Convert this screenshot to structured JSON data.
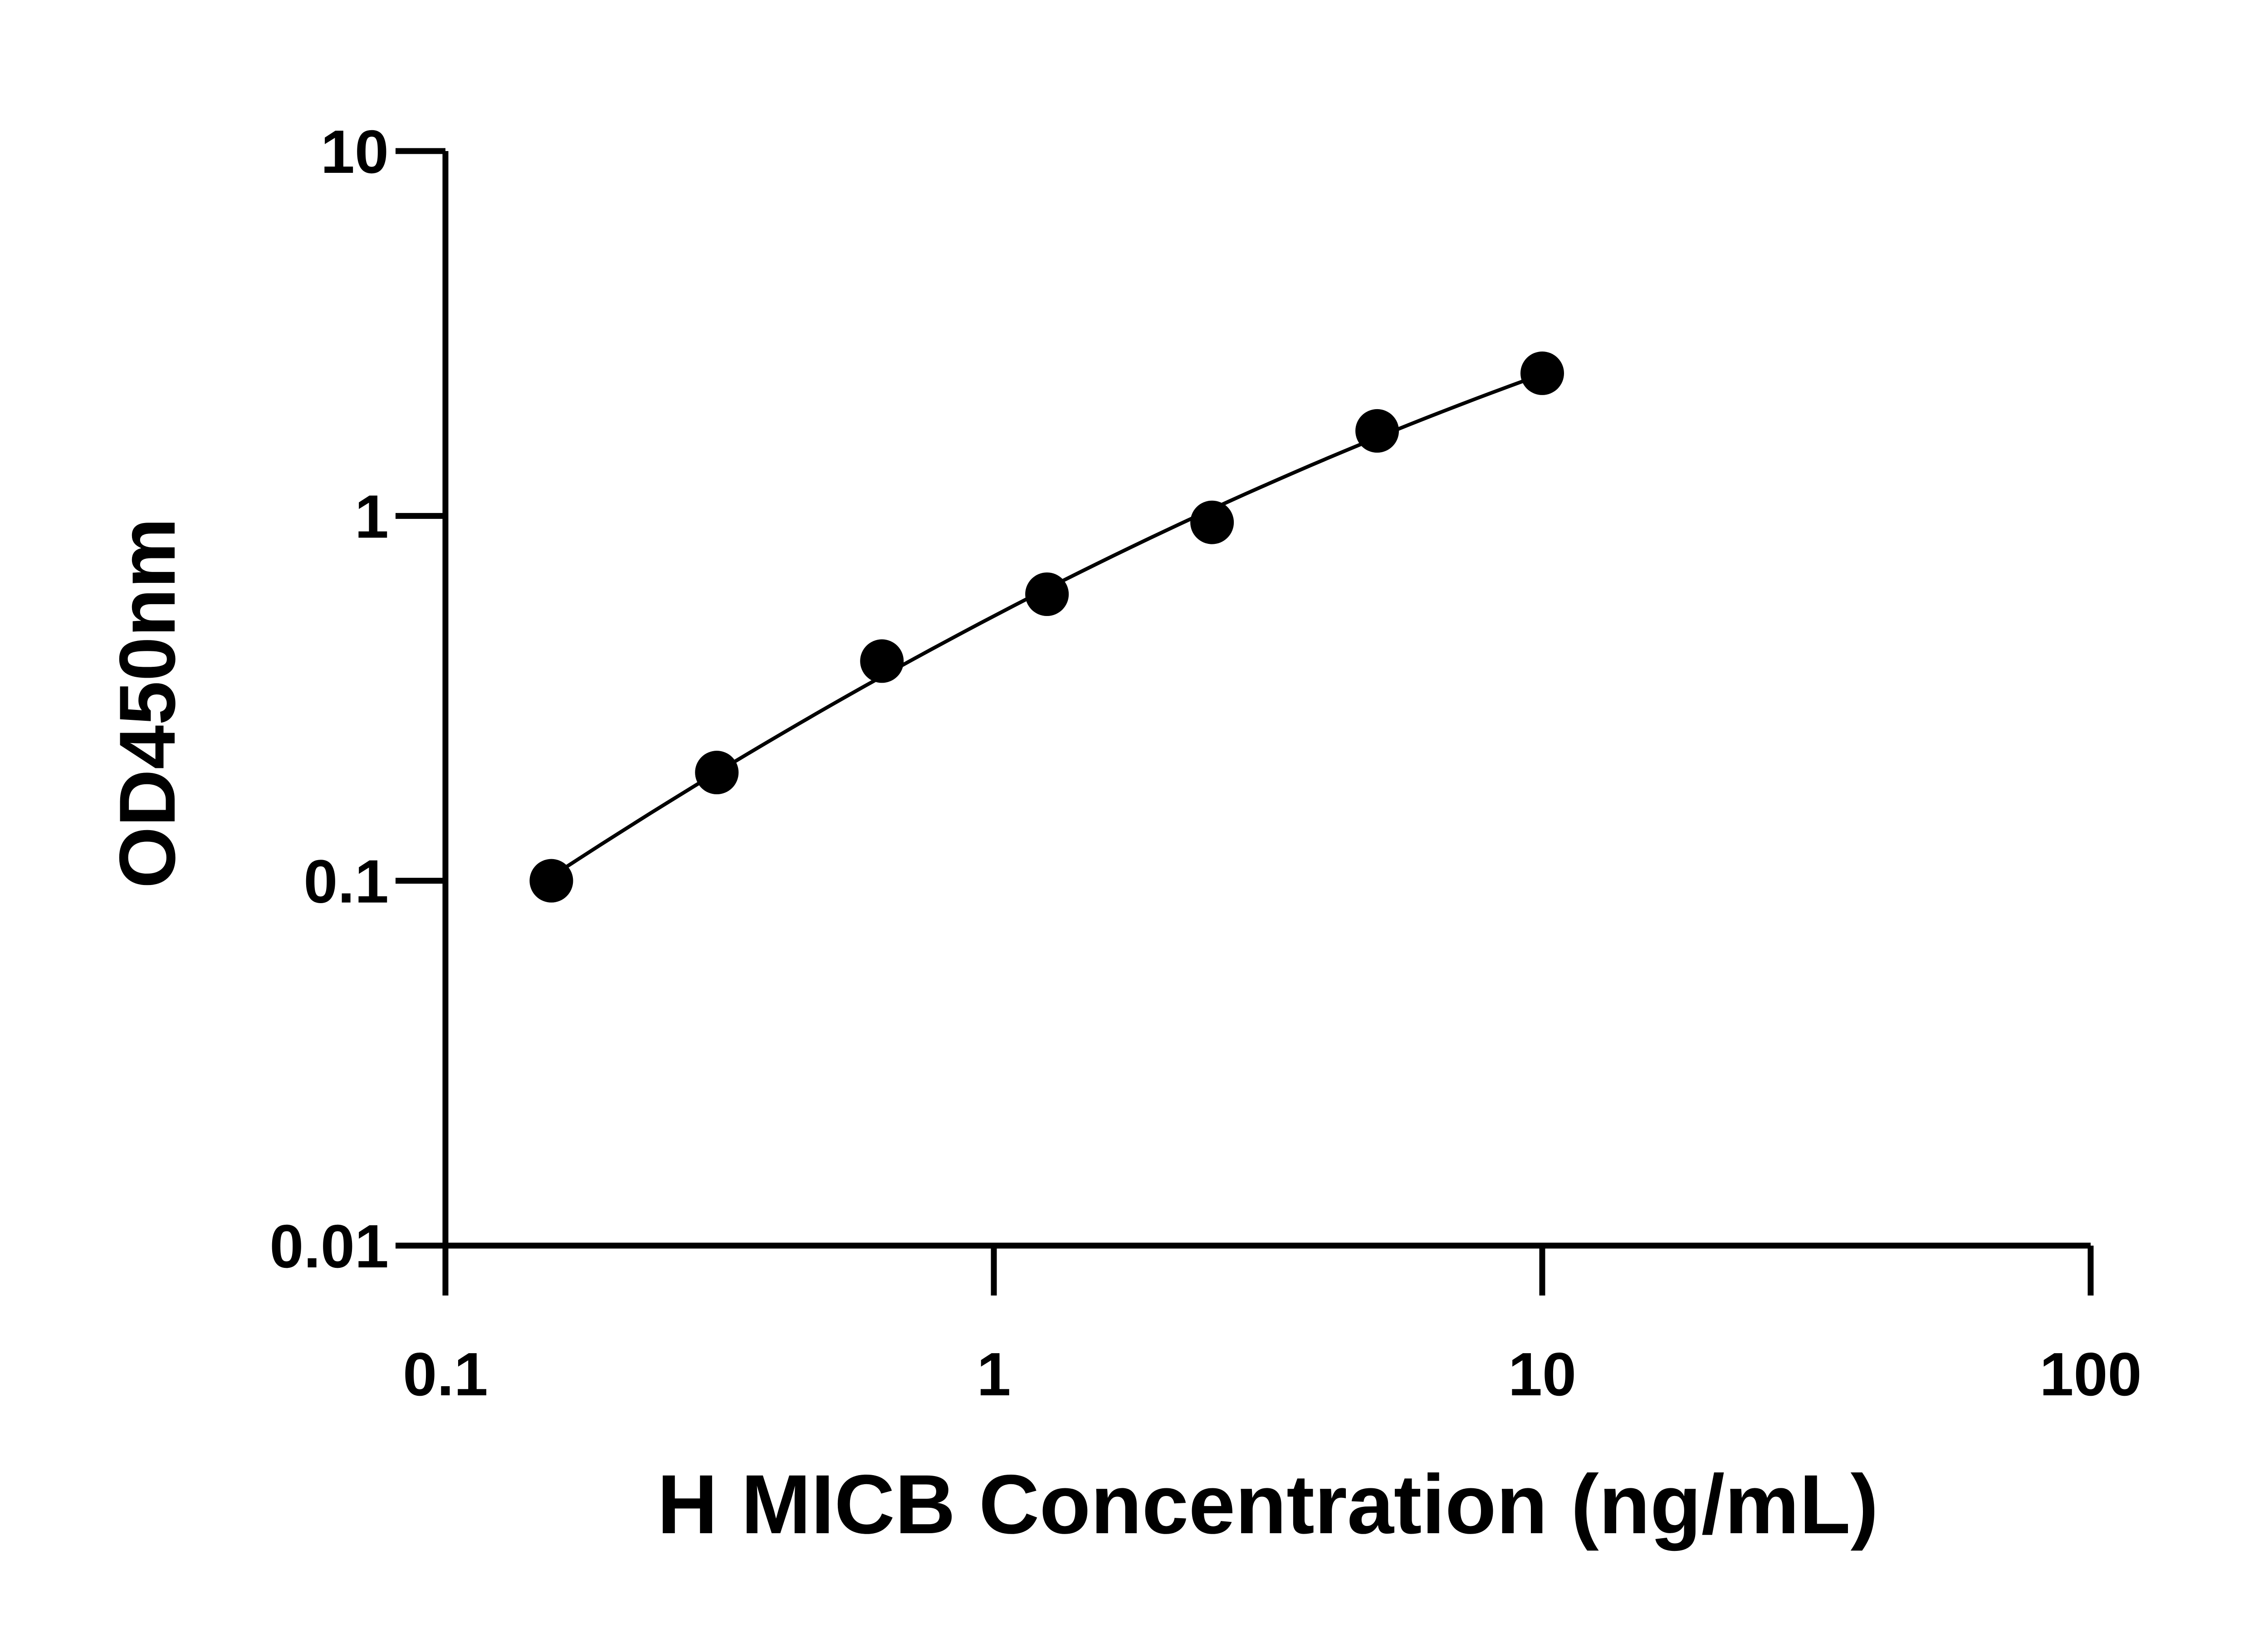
{
  "chart_data": {
    "type": "scatter",
    "title": "",
    "xlabel": "H MICB Concentration (ng/mL)",
    "ylabel": "OD450nm",
    "xscale": "log",
    "yscale": "log",
    "xlim": [
      0.1,
      100
    ],
    "ylim": [
      0.01,
      10
    ],
    "xticks": [
      "0.1",
      "1",
      "10",
      "100"
    ],
    "yticks": [
      "0.01",
      "0.1",
      "1",
      "10"
    ],
    "grid": false,
    "fit_line": true,
    "marker_color": "#000000",
    "series": [
      {
        "x": [
          0.156,
          0.3125,
          0.625,
          1.25,
          2.5,
          5,
          10
        ],
        "y": [
          0.1,
          0.198,
          0.4,
          0.61,
          0.96,
          1.71,
          2.46
        ]
      }
    ]
  }
}
